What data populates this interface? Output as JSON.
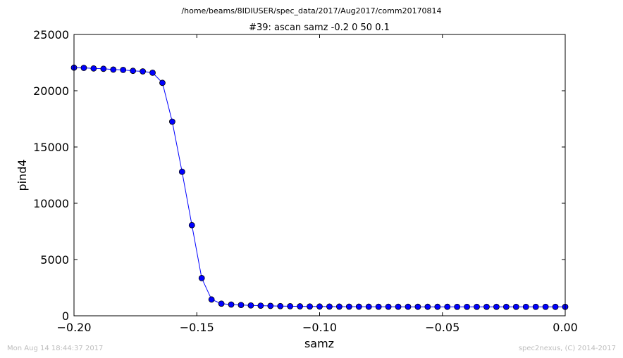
{
  "header": {
    "supertitle": "/home/beams/8IDIUSER/spec_data/2017/Aug2017/comm20170814"
  },
  "footer": {
    "timestamp": "Mon Aug 14 18:44:37 2017",
    "credit": "spec2nexus, (C) 2014-2017"
  },
  "chart_data": {
    "type": "line",
    "title": "#39: ascan  samz -0.2 0  50 0.1",
    "xlabel": "samz",
    "ylabel": "pind4",
    "xlim": [
      -0.2,
      0.0
    ],
    "ylim": [
      0,
      25000
    ],
    "x_ticks": [
      "−0.20",
      "−0.15",
      "−0.10",
      "−0.05",
      "0.00"
    ],
    "y_ticks": [
      "0",
      "5000",
      "10000",
      "15000",
      "20000",
      "25000"
    ],
    "grid": false,
    "line_color": "#0000ff",
    "marker": "circle",
    "x": [
      -0.2,
      -0.196,
      -0.192,
      -0.188,
      -0.184,
      -0.18,
      -0.176,
      -0.172,
      -0.168,
      -0.164,
      -0.16,
      -0.156,
      -0.152,
      -0.148,
      -0.144,
      -0.14,
      -0.136,
      -0.132,
      -0.128,
      -0.124,
      -0.12,
      -0.116,
      -0.112,
      -0.108,
      -0.104,
      -0.1,
      -0.096,
      -0.092,
      -0.088,
      -0.084,
      -0.08,
      -0.076,
      -0.072,
      -0.068,
      -0.064,
      -0.06,
      -0.056,
      -0.052,
      -0.048,
      -0.044,
      -0.04,
      -0.036,
      -0.032,
      -0.028,
      -0.024,
      -0.02,
      -0.016,
      -0.012,
      -0.008,
      -0.004,
      0.0
    ],
    "y": [
      22050,
      22030,
      21980,
      21950,
      21880,
      21850,
      21770,
      21720,
      21600,
      20700,
      17250,
      12800,
      8050,
      3350,
      1450,
      1080,
      1000,
      960,
      920,
      900,
      880,
      860,
      850,
      840,
      830,
      825,
      820,
      815,
      812,
      810,
      808,
      806,
      805,
      804,
      803,
      802,
      801,
      800,
      800,
      799,
      798,
      798,
      797,
      797,
      796,
      796,
      795,
      795,
      795,
      794,
      794
    ]
  }
}
